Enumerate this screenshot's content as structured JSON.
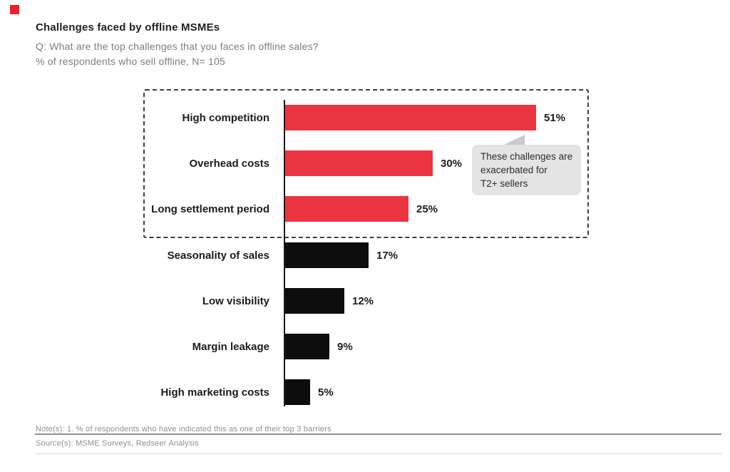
{
  "header": {
    "title": "Challenges faced by offline MSMEs",
    "question": "Q: What are the top challenges that you faces in offline sales?",
    "sample": "% of respondents who sell offline, N= 105"
  },
  "callout": {
    "text": "These challenges are exacerbated for T2+ sellers",
    "lines": [
      "These challenges are",
      "exacerbated for",
      "T2+ sellers"
    ]
  },
  "footer": {
    "note": "Note(s): 1. % of respondents who have indicated this as one of their top 3 barriers",
    "source": "Source(s): MSME Surveys, Redseer Analysis"
  },
  "colors": {
    "highlight_bar": "#EA3541",
    "default_bar": "#0D0D0D",
    "callout_bg": "#E4E4E5",
    "callout_pointer": "#C7C9CA",
    "brand_mark": "#EC1E27",
    "subtitle_text": "#7D7D7D",
    "footer_text": "#8F8F8F"
  },
  "chart_data": {
    "type": "bar",
    "orientation": "horizontal",
    "title": "Challenges faced by offline MSMEs",
    "xlabel": "",
    "ylabel": "",
    "unit": "%",
    "xlim": [
      0,
      55
    ],
    "grid": false,
    "legend": null,
    "categories": [
      "High competition",
      "Overhead costs",
      "Long settlement period",
      "Seasonality of sales",
      "Low visibility",
      "Margin leakage",
      "High marketing costs"
    ],
    "values": [
      51,
      30,
      25,
      17,
      12,
      9,
      5
    ],
    "rows": [
      {
        "label": "High competition",
        "value": 51,
        "display": "51%",
        "highlighted": true
      },
      {
        "label": "Overhead costs",
        "value": 30,
        "display": "30%",
        "highlighted": true
      },
      {
        "label": "Long settlement period",
        "value": 25,
        "display": "25%",
        "highlighted": true
      },
      {
        "label": "Seasonality of sales",
        "value": 17,
        "display": "17%",
        "highlighted": false
      },
      {
        "label": "Low visibility",
        "value": 12,
        "display": "12%",
        "highlighted": false
      },
      {
        "label": "Margin leakage",
        "value": 9,
        "display": "9%",
        "highlighted": false
      },
      {
        "label": "High marketing costs",
        "value": 5,
        "display": "5%",
        "highlighted": false
      }
    ],
    "annotation": "These challenges are exacerbated for T2+ sellers"
  }
}
